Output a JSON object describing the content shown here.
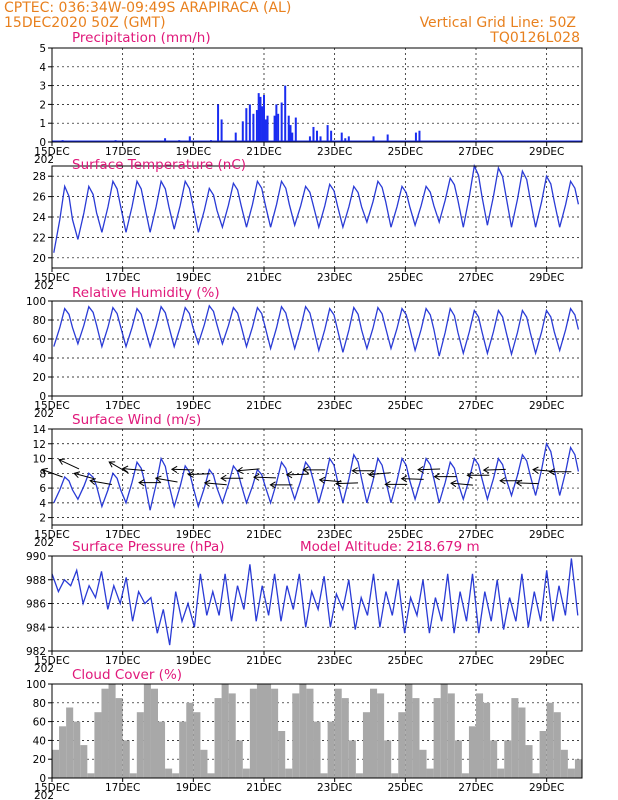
{
  "header": {
    "line1": "CPTEC:   036:34W-09:49S   ARAPIRACA (AL)",
    "line2_left": "15DEC2020 50Z (GMT)",
    "line2_right": "Vertical Grid Line: 50Z",
    "line3_right": "TQ0126L028"
  },
  "x_ticks": [
    "15DEC",
    "17DEC",
    "19DEC",
    "21DEC",
    "23DEC",
    "25DEC",
    "27DEC",
    "29DEC"
  ],
  "x_prefix": "202",
  "colors": {
    "header": "#e8801e",
    "title": "#e0187a",
    "line": "#2a3bd6",
    "bar": "#1a2cf0",
    "cloud": "#a8a8a8"
  },
  "chart_data": [
    {
      "id": "precip",
      "type": "bar",
      "title": "Precipitation (mm/h)",
      "ylim": [
        0,
        5
      ],
      "yticks": [
        "0",
        "1",
        "2",
        "3",
        "4",
        "5"
      ],
      "x": [
        0.3,
        1.4,
        1.8,
        2.2,
        3.2,
        3.6,
        3.9,
        4.1,
        4.5,
        4.7,
        4.8,
        5.2,
        5.4,
        5.5,
        5.6,
        5.7,
        5.8,
        5.85,
        5.9,
        5.95,
        6.0,
        6.05,
        6.1,
        6.3,
        6.35,
        6.4,
        6.5,
        6.6,
        6.7,
        6.75,
        6.8,
        6.9,
        7.3,
        7.4,
        7.5,
        7.6,
        7.8,
        7.9,
        8.2,
        8.3,
        8.4,
        9.1,
        9.5,
        10.3,
        10.4
      ],
      "values": [
        0.1,
        0.05,
        0.1,
        0.05,
        0.2,
        0.1,
        0.3,
        0.05,
        0.1,
        2.0,
        1.2,
        0.5,
        1.1,
        1.8,
        2.0,
        1.5,
        1.7,
        2.6,
        2.4,
        1.9,
        2.5,
        1.2,
        1.4,
        1.4,
        2.0,
        1.5,
        2.1,
        3.0,
        1.4,
        0.9,
        0.5,
        1.3,
        0.3,
        0.8,
        0.6,
        0.3,
        0.9,
        0.6,
        0.5,
        0.2,
        0.3,
        0.3,
        0.4,
        0.5,
        0.6
      ]
    },
    {
      "id": "temp",
      "type": "line",
      "title": "Surface Temperature (nC)",
      "ylim": [
        19,
        29
      ],
      "yticks": [
        "20",
        "22",
        "24",
        "26",
        "28"
      ],
      "peaks": [
        27.0,
        27.0,
        27.5,
        27.5,
        27.5,
        27.5,
        26.8,
        27.3,
        27.5,
        27.5,
        27.0,
        27.2,
        27.0,
        27.5,
        27.0,
        27.0,
        27.8,
        29.0,
        28.8,
        28.5,
        28.0,
        27.5
      ],
      "troughs": [
        20.5,
        21.8,
        22.5,
        22.5,
        22.5,
        22.8,
        22.5,
        23.0,
        23.0,
        23.0,
        23.2,
        23.0,
        23.0,
        23.5,
        23.0,
        23.2,
        23.5,
        23.0,
        23.2,
        23.0,
        23.0,
        23.0
      ]
    },
    {
      "id": "rh",
      "type": "line",
      "title": "Relative Humidity (%)",
      "ylim": [
        0,
        100
      ],
      "yticks": [
        "0",
        "20",
        "40",
        "60",
        "80",
        "100"
      ],
      "troughs": [
        52,
        55,
        52,
        52,
        52,
        52,
        55,
        55,
        52,
        50,
        50,
        48,
        46,
        50,
        50,
        48,
        42,
        45,
        45,
        44,
        45,
        48
      ],
      "peaks": [
        92,
        94,
        93,
        92,
        94,
        93,
        95,
        93,
        93,
        94,
        94,
        92,
        93,
        93,
        92,
        92,
        92,
        90,
        90,
        90,
        90,
        92
      ]
    },
    {
      "id": "wind",
      "type": "line",
      "title": "Surface Wind (m/s)",
      "ylim": [
        1,
        14
      ],
      "yticks": [
        "2",
        "4",
        "6",
        "8",
        "10",
        "12",
        "14"
      ],
      "peaks": [
        7.5,
        8.0,
        8.0,
        9.5,
        10.0,
        9.0,
        8.5,
        9.0,
        8.5,
        9.5,
        9.5,
        10.0,
        10.5,
        10.0,
        10.0,
        10.0,
        9.5,
        10.0,
        10.0,
        10.5,
        12.0,
        11.5
      ],
      "troughs": [
        4.0,
        4.5,
        3.5,
        4.0,
        3.0,
        3.5,
        3.5,
        4.0,
        4.0,
        4.0,
        4.5,
        4.0,
        4.0,
        4.0,
        4.0,
        4.5,
        4.0,
        4.5,
        4.5,
        5.0,
        5.0,
        5.0
      ],
      "arrows_deg": [
        160,
        155,
        165,
        170,
        150,
        175,
        180,
        170,
        178,
        182,
        175,
        180,
        185,
        178,
        180,
        182,
        180,
        175,
        182,
        180,
        185,
        180,
        178,
        182,
        180,
        175,
        180,
        182,
        180,
        178,
        175,
        180
      ]
    },
    {
      "id": "pressure",
      "type": "line",
      "title": "Surface Pressure (hPa)",
      "annotation": "Model Altitude: 218.679 m",
      "ylim": [
        982,
        990
      ],
      "yticks": [
        "982",
        "984",
        "986",
        "988",
        "990"
      ],
      "primary_max": [
        988.5,
        988.8,
        988.7,
        988.2,
        986.5,
        987.0,
        988.5,
        988.5,
        989.3,
        988.5,
        988.5,
        988.3,
        988.0,
        988.5,
        988.0,
        988.0,
        988.5,
        988.5,
        988.0,
        988.5,
        988.8,
        989.8
      ],
      "primary_min": [
        987.5,
        986.5,
        986.0,
        986.0,
        982.5,
        984.0,
        985.0,
        985.5,
        985.0,
        985.5,
        985.5,
        985.5,
        985.0,
        985.0,
        985.0,
        984.5,
        984.5,
        984.5,
        984.5,
        984.5,
        985.0,
        986.0
      ],
      "secondary_max": [
        988.0,
        987.5,
        987.5,
        987.0,
        985.5,
        986.0,
        987.0,
        987.5,
        987.5,
        987.5,
        987.0,
        986.8,
        986.5,
        987.0,
        986.5,
        986.5,
        987.0,
        987.0,
        986.5,
        987.0,
        987.5,
        988.0
      ],
      "secondary_min": [
        987.0,
        986.0,
        985.5,
        984.5,
        983.5,
        984.5,
        985.0,
        984.5,
        984.5,
        984.5,
        984.0,
        984.0,
        983.8,
        984.0,
        983.5,
        983.5,
        983.5,
        983.5,
        983.8,
        984.0,
        984.5,
        985.0
      ]
    },
    {
      "id": "cloud",
      "type": "bar",
      "title": "Cloud Cover (%)",
      "ylim": [
        0,
        100
      ],
      "yticks": [
        "0",
        "20",
        "40",
        "60",
        "80",
        "100"
      ],
      "x": [
        0.0,
        0.2,
        0.4,
        0.6,
        0.8,
        1.0,
        1.2,
        1.4,
        1.6,
        1.8,
        2.0,
        2.2,
        2.4,
        2.6,
        2.8,
        3.0,
        3.2,
        3.4,
        3.6,
        3.8,
        4.0,
        4.2,
        4.4,
        4.6,
        4.8,
        5.0,
        5.2,
        5.4,
        5.6,
        5.8,
        6.0,
        6.2,
        6.4,
        6.6,
        6.8,
        7.0,
        7.2,
        7.4,
        7.6,
        7.8,
        8.0,
        8.2,
        8.4,
        8.6,
        8.8,
        9.0,
        9.2,
        9.4,
        9.6,
        9.8,
        10.0,
        10.2,
        10.4,
        10.6,
        10.8,
        11.0,
        11.2,
        11.4,
        11.6,
        11.8,
        12.0,
        12.2,
        12.4,
        12.6,
        12.8,
        13.0,
        13.2,
        13.4,
        13.6,
        13.8,
        14.0,
        14.2,
        14.4,
        14.6,
        14.8
      ],
      "values": [
        30,
        55,
        75,
        60,
        35,
        5,
        70,
        95,
        100,
        85,
        40,
        5,
        70,
        100,
        95,
        60,
        10,
        5,
        60,
        80,
        70,
        30,
        5,
        85,
        100,
        90,
        40,
        10,
        95,
        100,
        100,
        95,
        50,
        10,
        90,
        100,
        95,
        60,
        5,
        60,
        95,
        85,
        40,
        5,
        70,
        95,
        90,
        40,
        5,
        70,
        100,
        85,
        30,
        10,
        85,
        100,
        90,
        40,
        5,
        55,
        90,
        80,
        40,
        10,
        40,
        85,
        75,
        35,
        5,
        50,
        80,
        70,
        30,
        10,
        20
      ]
    }
  ]
}
